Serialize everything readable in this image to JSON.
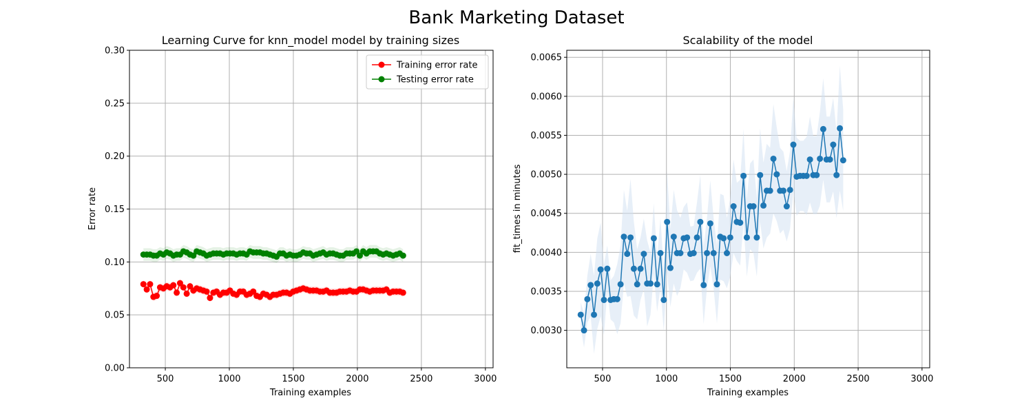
{
  "figure": {
    "title": "Bank Marketing Dataset"
  },
  "chart_data": [
    {
      "type": "line",
      "title": "Learning Curve for knn_model model by training sizes",
      "xlabel": "Training examples",
      "ylabel": "Error rate",
      "xlim": [
        220,
        3060
      ],
      "ylim": [
        0,
        0.3
      ],
      "xticks": [
        500,
        1000,
        1500,
        2000,
        2500,
        3000
      ],
      "yticks": [
        0.0,
        0.05,
        0.1,
        0.15,
        0.2,
        0.25,
        0.3
      ],
      "ytick_labels": [
        "0.00",
        "0.05",
        "0.10",
        "0.15",
        "0.20",
        "0.25",
        "0.30"
      ],
      "grid": true,
      "legend": "top-right",
      "x_start": 329,
      "x_step": 26,
      "series": [
        {
          "name": "Training error rate",
          "color": "#ff0000",
          "band_width": 0.004,
          "values": [
            0.079,
            0.074,
            0.079,
            0.067,
            0.068,
            0.076,
            0.075,
            0.077,
            0.076,
            0.078,
            0.071,
            0.08,
            0.076,
            0.07,
            0.077,
            0.073,
            0.075,
            0.074,
            0.073,
            0.072,
            0.066,
            0.071,
            0.072,
            0.069,
            0.071,
            0.071,
            0.073,
            0.07,
            0.069,
            0.072,
            0.072,
            0.069,
            0.07,
            0.072,
            0.068,
            0.067,
            0.07,
            0.069,
            0.067,
            0.069,
            0.069,
            0.07,
            0.071,
            0.071,
            0.07,
            0.072,
            0.073,
            0.074,
            0.075,
            0.074,
            0.073,
            0.073,
            0.073,
            0.072,
            0.072,
            0.073,
            0.071,
            0.071,
            0.071,
            0.072,
            0.072,
            0.072,
            0.073,
            0.072,
            0.072,
            0.074,
            0.074,
            0.073,
            0.072,
            0.073,
            0.073,
            0.073,
            0.073,
            0.074,
            0.071,
            0.072,
            0.072,
            0.072,
            0.071
          ]
        },
        {
          "name": "Testing error rate",
          "color": "#008000",
          "band_width": 0.006,
          "values": [
            0.107,
            0.107,
            0.107,
            0.106,
            0.106,
            0.108,
            0.107,
            0.109,
            0.108,
            0.106,
            0.107,
            0.107,
            0.11,
            0.109,
            0.107,
            0.106,
            0.11,
            0.109,
            0.108,
            0.106,
            0.107,
            0.108,
            0.108,
            0.108,
            0.107,
            0.108,
            0.108,
            0.108,
            0.107,
            0.108,
            0.108,
            0.107,
            0.11,
            0.109,
            0.109,
            0.109,
            0.108,
            0.108,
            0.107,
            0.106,
            0.105,
            0.108,
            0.108,
            0.106,
            0.107,
            0.106,
            0.106,
            0.107,
            0.109,
            0.108,
            0.108,
            0.106,
            0.107,
            0.108,
            0.109,
            0.107,
            0.108,
            0.108,
            0.107,
            0.106,
            0.106,
            0.108,
            0.108,
            0.108,
            0.11,
            0.106,
            0.11,
            0.108,
            0.11,
            0.11,
            0.11,
            0.108,
            0.107,
            0.108,
            0.107,
            0.106,
            0.107,
            0.108,
            0.106
          ]
        }
      ]
    },
    {
      "type": "line",
      "title": "Scalability of the model",
      "xlabel": "Training examples",
      "ylabel": "fit_times in minutes",
      "xlim": [
        220,
        3060
      ],
      "ylim": [
        0.00252,
        0.00659
      ],
      "xticks": [
        500,
        1000,
        1500,
        2000,
        2500,
        3000
      ],
      "yticks": [
        0.003,
        0.0035,
        0.004,
        0.0045,
        0.005,
        0.0055,
        0.006,
        0.0065
      ],
      "ytick_labels": [
        "0.0030",
        "0.0035",
        "0.0040",
        "0.0045",
        "0.0050",
        "0.0055",
        "0.0060",
        "0.0065"
      ],
      "grid": true,
      "x_start": 329,
      "x_step": 26,
      "series": [
        {
          "color": "#1f77b4",
          "band_color": "#cfe0f1",
          "values": [
            0.0032,
            0.003,
            0.0034,
            0.00358,
            0.0032,
            0.0036,
            0.00378,
            0.00339,
            0.00379,
            0.00339,
            0.0034,
            0.0034,
            0.00359,
            0.0042,
            0.00398,
            0.00419,
            0.00379,
            0.00359,
            0.00379,
            0.00398,
            0.0036,
            0.0036,
            0.00418,
            0.00359,
            0.00399,
            0.00339,
            0.00439,
            0.0038,
            0.0042,
            0.00399,
            0.00399,
            0.00418,
            0.00419,
            0.00398,
            0.00399,
            0.00419,
            0.00439,
            0.00358,
            0.00399,
            0.00437,
            0.00399,
            0.00359,
            0.0042,
            0.00418,
            0.00399,
            0.00419,
            0.00459,
            0.00439,
            0.00438,
            0.00498,
            0.00419,
            0.00459,
            0.00459,
            0.00419,
            0.00499,
            0.0046,
            0.00479,
            0.00479,
            0.0052,
            0.005,
            0.00479,
            0.00479,
            0.00459,
            0.0048,
            0.00538,
            0.00497,
            0.00498,
            0.00498,
            0.00498,
            0.00519,
            0.00499,
            0.00499,
            0.0052,
            0.00558,
            0.00519,
            0.00519,
            0.00538,
            0.00499,
            0.00559,
            0.00518
          ],
          "band_half_widths": [
            0.00016,
            0.00022,
            0.0003,
            0.0004,
            0.0005,
            0.00058,
            0.0006,
            0.00045,
            0.0003,
            0.00025,
            0.0003,
            0.00045,
            0.0005,
            0.0006,
            0.00055,
            0.00075,
            0.0006,
            0.00045,
            0.0004,
            0.00045,
            0.00055,
            0.0004,
            0.00045,
            0.00035,
            0.00045,
            0.0004,
            0.00065,
            0.0005,
            0.0006,
            0.00055,
            0.00045,
            0.0004,
            0.00045,
            0.00035,
            0.00035,
            0.00045,
            0.0006,
            0.0005,
            0.00045,
            0.00055,
            0.00045,
            0.0005,
            0.00055,
            0.00055,
            0.00045,
            0.0005,
            0.0006,
            0.0005,
            0.00055,
            0.0006,
            0.0005,
            0.00055,
            0.0006,
            0.0005,
            0.0006,
            0.00055,
            0.0006,
            0.00055,
            0.0007,
            0.0006,
            0.00055,
            0.0005,
            0.00045,
            0.0005,
            0.0006,
            0.0005,
            0.00045,
            0.00045,
            0.0005,
            0.00055,
            0.0005,
            0.0005,
            0.0006,
            0.00065,
            0.00055,
            0.00055,
            0.0006,
            0.00055,
            0.0008,
            0.00065
          ]
        }
      ]
    }
  ]
}
